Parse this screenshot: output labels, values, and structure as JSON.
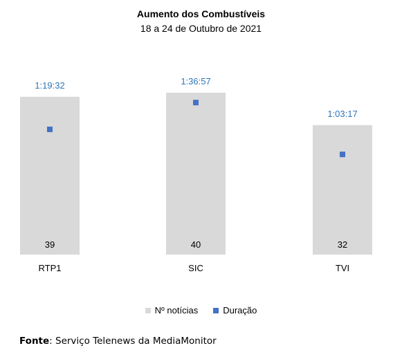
{
  "chart_data": {
    "type": "bar",
    "title": "Aumento dos Combustíveis",
    "subtitle": "18 a 24 de Outubro de 2021",
    "categories": [
      "RTP1",
      "SIC",
      "TVI"
    ],
    "series": [
      {
        "name": "Nº notícias",
        "values": [
          39,
          40,
          32
        ],
        "color": "#d9d9d9"
      },
      {
        "name": "Duração",
        "values": [
          "1:19:32",
          "1:36:57",
          "1:03:17"
        ],
        "seconds": [
          4772,
          5817,
          3797
        ],
        "color": "#4472c4"
      }
    ],
    "legend_position": "bottom",
    "grid": false
  },
  "source": {
    "label": "Fonte",
    "text": ": Serviço Telenews da MediaMonitor"
  },
  "colors": {
    "bar": "#d9d9d9",
    "marker": "#4472c4",
    "duration_label": "#2e75b6"
  }
}
